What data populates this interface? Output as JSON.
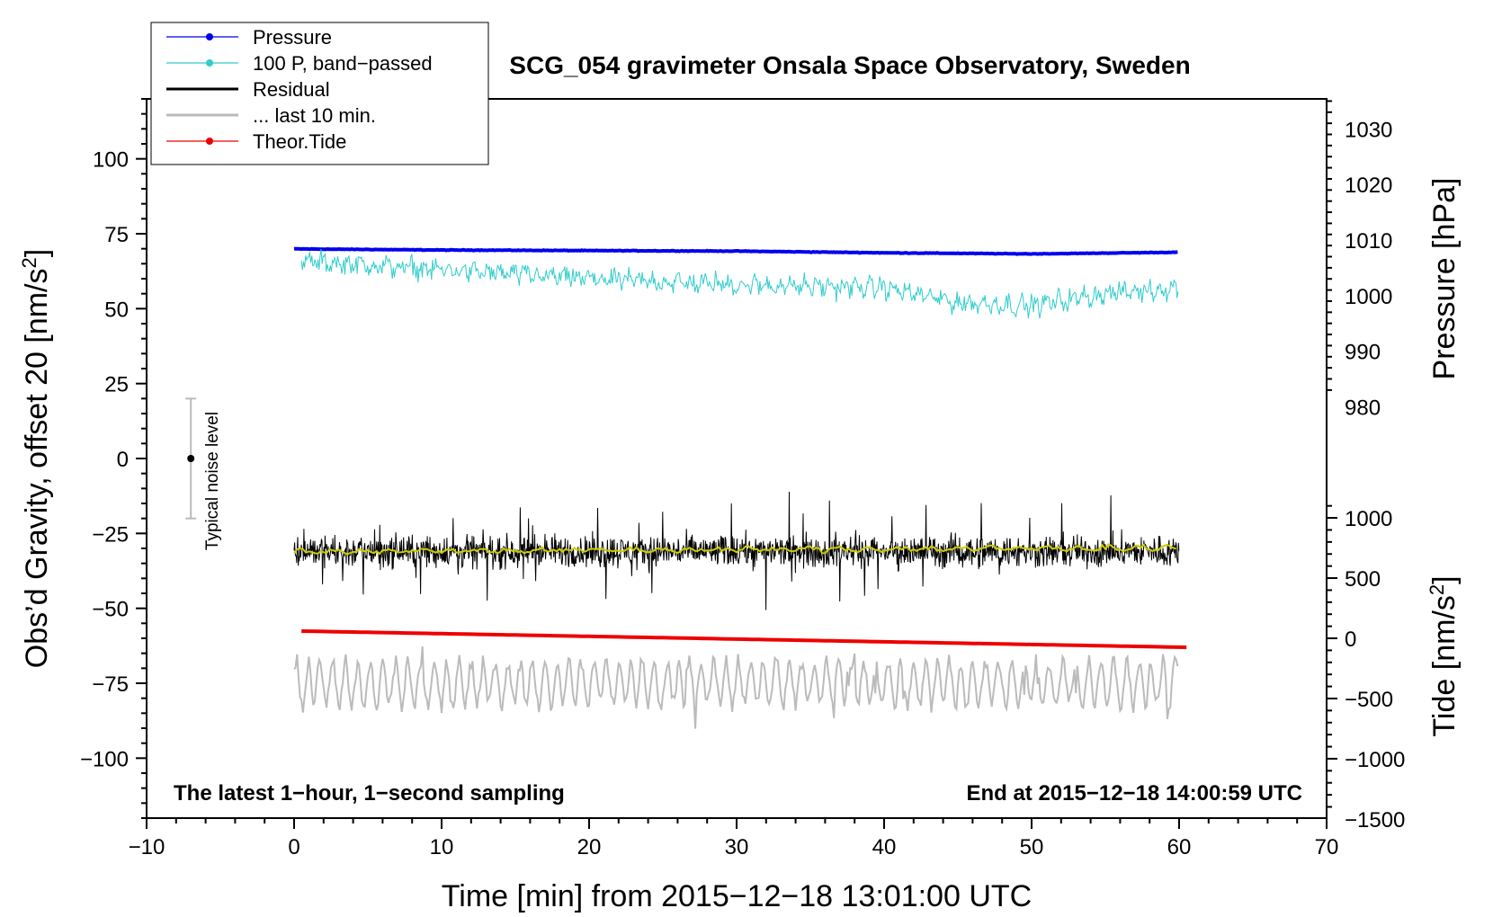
{
  "chart_data": {
    "type": "line",
    "title": "SCG_054 gravimeter Onsala Space Observatory, Sweden",
    "xlabel": "Time [min] from 2015−12−18 13:01:00 UTC",
    "ylabel_left": "Obs’d Gravity, offset 20 [nm/s²]",
    "ylabel_pressure_text": "Pressure [hPa]",
    "ylabel_tide_text": "Tide [nm/s²]",
    "xlim": [
      -10,
      70
    ],
    "ylim_left": [
      -120,
      120
    ],
    "x_ticks": [
      -10,
      0,
      10,
      20,
      30,
      40,
      50,
      60,
      70
    ],
    "x_tick_labels": [
      "−10",
      "0",
      "10",
      "20",
      "30",
      "40",
      "50",
      "60",
      "70"
    ],
    "y_left_ticks": [
      100,
      75,
      50,
      25,
      0,
      -25,
      -50,
      -75,
      -100
    ],
    "y_left_tick_labels": [
      "100",
      "75",
      "50",
      "25",
      "0",
      "−25",
      "−50",
      "−75",
      "−100"
    ],
    "pressure_axis": {
      "ticks": [
        1030,
        1020,
        1010,
        1000,
        990,
        980
      ],
      "tick_labels": [
        "1030",
        "1020",
        "1010",
        "1000",
        "990",
        "980"
      ],
      "left_equiv_at_1030": 110,
      "left_per_hpa": 1.8545
    },
    "tide_axis": {
      "ticks": [
        1000,
        500,
        0,
        -500,
        -1000,
        -1500
      ],
      "tick_labels": [
        "1000",
        "500",
        "0",
        "−500",
        "−1000",
        "−1500"
      ],
      "left_equiv_at_0": -60,
      "left_per_unit": 0.04018
    },
    "series": [
      {
        "name": "Pressure",
        "color": "#0000ee",
        "style": "line+dots",
        "pressure_hpa": {
          "x": [
            0,
            10,
            20,
            30,
            40,
            50,
            60
          ],
          "y": [
            1008.4,
            1008.2,
            1008.1,
            1008.0,
            1007.7,
            1007.5,
            1007.8
          ]
        }
      },
      {
        "name": "100 P, band−passed",
        "color": "#33cccc",
        "style": "line+dots",
        "trend": {
          "x": [
            0,
            10,
            20,
            30,
            40,
            45,
            50,
            55,
            60
          ],
          "y": [
            66,
            63,
            60,
            58,
            57,
            52,
            51,
            55,
            57
          ]
        },
        "amplitude": 4.5
      },
      {
        "name": "Residual",
        "color": "#000000",
        "style": "line",
        "mean": -31,
        "amplitude": 8
      },
      {
        "name": "Residual smoothed",
        "color": "#cccc00",
        "style": "line",
        "mean": -31,
        "amplitude": 1.2
      },
      {
        "name": "... last 10 min.",
        "color": "#bbbbbb",
        "style": "line",
        "mean": -75,
        "amplitude": 10
      },
      {
        "name": "Theor.Tide",
        "color": "#ee0000",
        "style": "line+dots",
        "tide_nm_s2": {
          "x": [
            0.5,
            60.5
          ],
          "y": [
            60,
            -75
          ]
        }
      }
    ],
    "noise_bar": {
      "label": "Typical noise level",
      "x": -7,
      "center": 0,
      "half_range": 20
    }
  },
  "annotations": {
    "left": "The latest 1−hour, 1−second sampling",
    "right": "End at 2015−12−18 14:00:59 UTC"
  },
  "legend": [
    {
      "label": "Pressure",
      "color": "#0000ee",
      "marker": true
    },
    {
      "label": "100 P, band−passed",
      "color": "#33cccc",
      "marker": true
    },
    {
      "label": "Residual",
      "color": "#000000",
      "marker": false
    },
    {
      "label": "... last 10 min.",
      "color": "#bbbbbb",
      "marker": false
    },
    {
      "label": "Theor.Tide",
      "color": "#ee0000",
      "marker": true
    }
  ]
}
